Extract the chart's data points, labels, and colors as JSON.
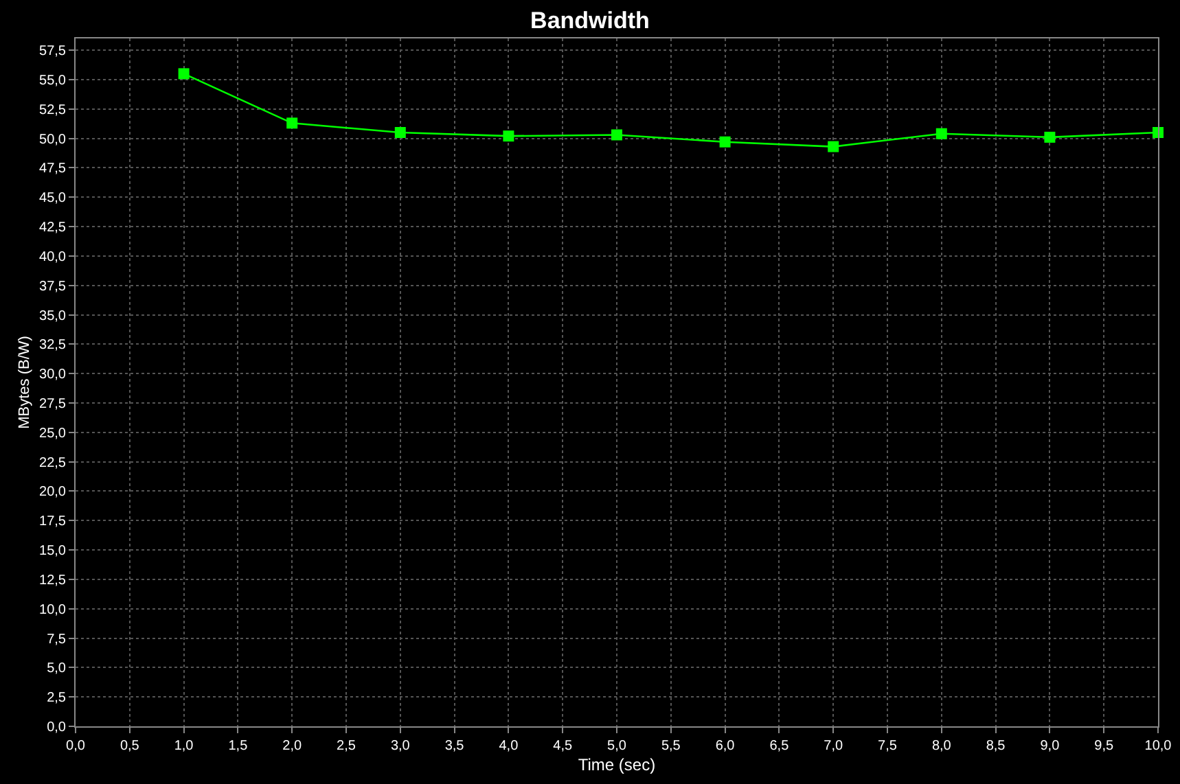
{
  "chart_data": {
    "type": "line",
    "title": "Bandwidth",
    "xlabel": "Time (sec)",
    "ylabel": "MBytes (B/W)",
    "x": [
      1,
      2,
      3,
      4,
      5,
      6,
      7,
      8,
      9,
      10
    ],
    "series": [
      {
        "color": "#00ff00",
        "values": [
          55.5,
          51.3,
          50.5,
          50.2,
          50.3,
          49.7,
          49.3,
          50.4,
          50.1,
          50.5
        ]
      }
    ],
    "marker": "square",
    "line_style": "solid",
    "grid": true,
    "xlim": [
      0,
      10
    ],
    "xticks": [
      {
        "value": 0,
        "label": "0,0"
      },
      {
        "value": 0.5,
        "label": "0,5"
      },
      {
        "value": 1,
        "label": "1,0"
      },
      {
        "value": 1.5,
        "label": "1,5"
      },
      {
        "value": 2,
        "label": "2,0"
      },
      {
        "value": 2.5,
        "label": "2,5"
      },
      {
        "value": 3,
        "label": "3,0"
      },
      {
        "value": 3.5,
        "label": "3,5"
      },
      {
        "value": 4,
        "label": "4,0"
      },
      {
        "value": 4.5,
        "label": "4,5"
      },
      {
        "value": 5,
        "label": "5,0"
      },
      {
        "value": 5.5,
        "label": "5,5"
      },
      {
        "value": 6,
        "label": "6,0"
      },
      {
        "value": 6.5,
        "label": "6,5"
      },
      {
        "value": 7,
        "label": "7,0"
      },
      {
        "value": 7.5,
        "label": "7,5"
      },
      {
        "value": 8,
        "label": "8,0"
      },
      {
        "value": 8.5,
        "label": "8,5"
      },
      {
        "value": 9,
        "label": "9,0"
      },
      {
        "value": 9.5,
        "label": "9,5"
      },
      {
        "value": 10,
        "label": "10,0"
      }
    ],
    "ylim": [
      0,
      58.5
    ],
    "yticks": [
      {
        "value": 0,
        "label": "0,0"
      },
      {
        "value": 2.5,
        "label": "2,5"
      },
      {
        "value": 5,
        "label": "5,0"
      },
      {
        "value": 7.5,
        "label": "7,5"
      },
      {
        "value": 10,
        "label": "10,0"
      },
      {
        "value": 12.5,
        "label": "12,5"
      },
      {
        "value": 15,
        "label": "15,0"
      },
      {
        "value": 17.5,
        "label": "17,5"
      },
      {
        "value": 20,
        "label": "20,0"
      },
      {
        "value": 22.5,
        "label": "22,5"
      },
      {
        "value": 25,
        "label": "25,0"
      },
      {
        "value": 27.5,
        "label": "27,5"
      },
      {
        "value": 30,
        "label": "30,0"
      },
      {
        "value": 32.5,
        "label": "32,5"
      },
      {
        "value": 35,
        "label": "35,0"
      },
      {
        "value": 37.5,
        "label": "37,5"
      },
      {
        "value": 40,
        "label": "40,0"
      },
      {
        "value": 42.5,
        "label": "42,5"
      },
      {
        "value": 45,
        "label": "45,0"
      },
      {
        "value": 47.5,
        "label": "47,5"
      },
      {
        "value": 50,
        "label": "50,0"
      },
      {
        "value": 52.5,
        "label": "52,5"
      },
      {
        "value": 55,
        "label": "55,0"
      },
      {
        "value": 57.5,
        "label": "57,5"
      }
    ]
  }
}
